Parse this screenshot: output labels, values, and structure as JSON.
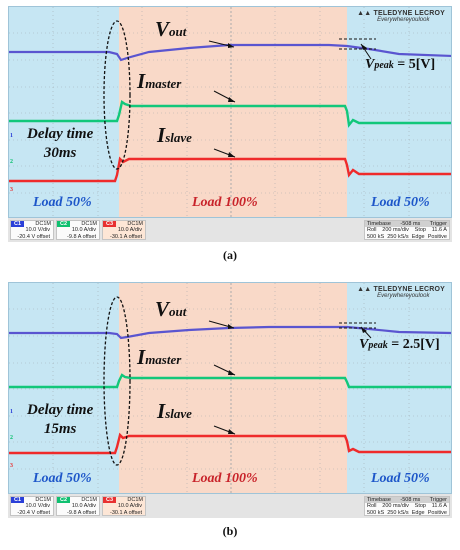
{
  "panels": [
    {
      "caption": "(a)",
      "labels": {
        "vout": "V",
        "vout_sub": "out",
        "imaster": "I",
        "imaster_sub": "master",
        "islave": "I",
        "islave_sub": "slave",
        "delay_line1": "Delay time",
        "delay_line2": "30ms",
        "load_left": "Load 50%",
        "load_mid": "Load 100%",
        "load_right": "Load 50%",
        "vpeak_label": "V",
        "vpeak_sub": "peak",
        "vpeak_value": " = 5[V]"
      },
      "logo": {
        "brand": "TELEDYNE LECROY",
        "tagline": "Everywhereyoulook"
      },
      "channels": [
        {
          "tag": "C1",
          "mode": "DC1M",
          "scale": "10.0 V/div",
          "offset": "-20.4 V offset",
          "color": "#2a3fd8"
        },
        {
          "tag": "C2",
          "mode": "DC1M",
          "scale": "10.0 A/div",
          "offset": "-9.8 A offset",
          "color": "#10c070"
        },
        {
          "tag": "C3",
          "mode": "DC1M",
          "scale": "10.0 A/div",
          "offset": "-30.1 A offset",
          "color": "#e83030"
        }
      ],
      "timebase": {
        "label": "Timebase",
        "delay": "-508 ms",
        "trigger": "Trigger",
        "mode_row1": "Roll",
        "rate1": "200 ms/div",
        "trig_mode": "Stop",
        "trig_level": "11.6 A",
        "mode_row2": "500 kS",
        "rate2": "250 kS/s",
        "trig_type": "Edge",
        "trig_slope": "Positive"
      },
      "markers": {
        "m1": "1",
        "m2": "2",
        "m3": "3"
      }
    },
    {
      "caption": "(b)",
      "labels": {
        "vout": "V",
        "vout_sub": "out",
        "imaster": "I",
        "imaster_sub": "master",
        "islave": "I",
        "islave_sub": "slave",
        "delay_line1": "Delay time",
        "delay_line2": "15ms",
        "load_left": "Load 50%",
        "load_mid": "Load 100%",
        "load_right": "Load 50%",
        "vpeak_label": "V",
        "vpeak_sub": "peak",
        "vpeak_value": " = 2.5[V]"
      },
      "logo": {
        "brand": "TELEDYNE LECROY",
        "tagline": "Everywhereyoulook"
      },
      "channels": [
        {
          "tag": "C1",
          "mode": "DC1M",
          "scale": "10.0 V/div",
          "offset": "-20.4 V offset",
          "color": "#2a3fd8"
        },
        {
          "tag": "C2",
          "mode": "DC1M",
          "scale": "10.0 A/div",
          "offset": "-9.8 A offset",
          "color": "#10c070"
        },
        {
          "tag": "C3",
          "mode": "DC1M",
          "scale": "10.0 A/div",
          "offset": "-30.1 A offset",
          "color": "#e83030"
        }
      ],
      "timebase": {
        "label": "Timebase",
        "delay": "-508 ms",
        "trigger": "Trigger",
        "mode_row1": "Roll",
        "rate1": "200 ms/div",
        "trig_mode": "Stop",
        "trig_level": "11.6 A",
        "mode_row2": "500 kS",
        "rate2": "250 kS/s",
        "trig_type": "Edge",
        "trig_slope": "Positive"
      },
      "markers": {
        "m1": "1",
        "m2": "2",
        "m3": "3"
      }
    }
  ],
  "colors": {
    "region_light_load": "#c6e6f3",
    "region_full_load": "#f9d9c8",
    "vout_trace": "#5a55d0",
    "imaster_trace": "#12c77a",
    "islave_trace": "#ef2b2b"
  }
}
